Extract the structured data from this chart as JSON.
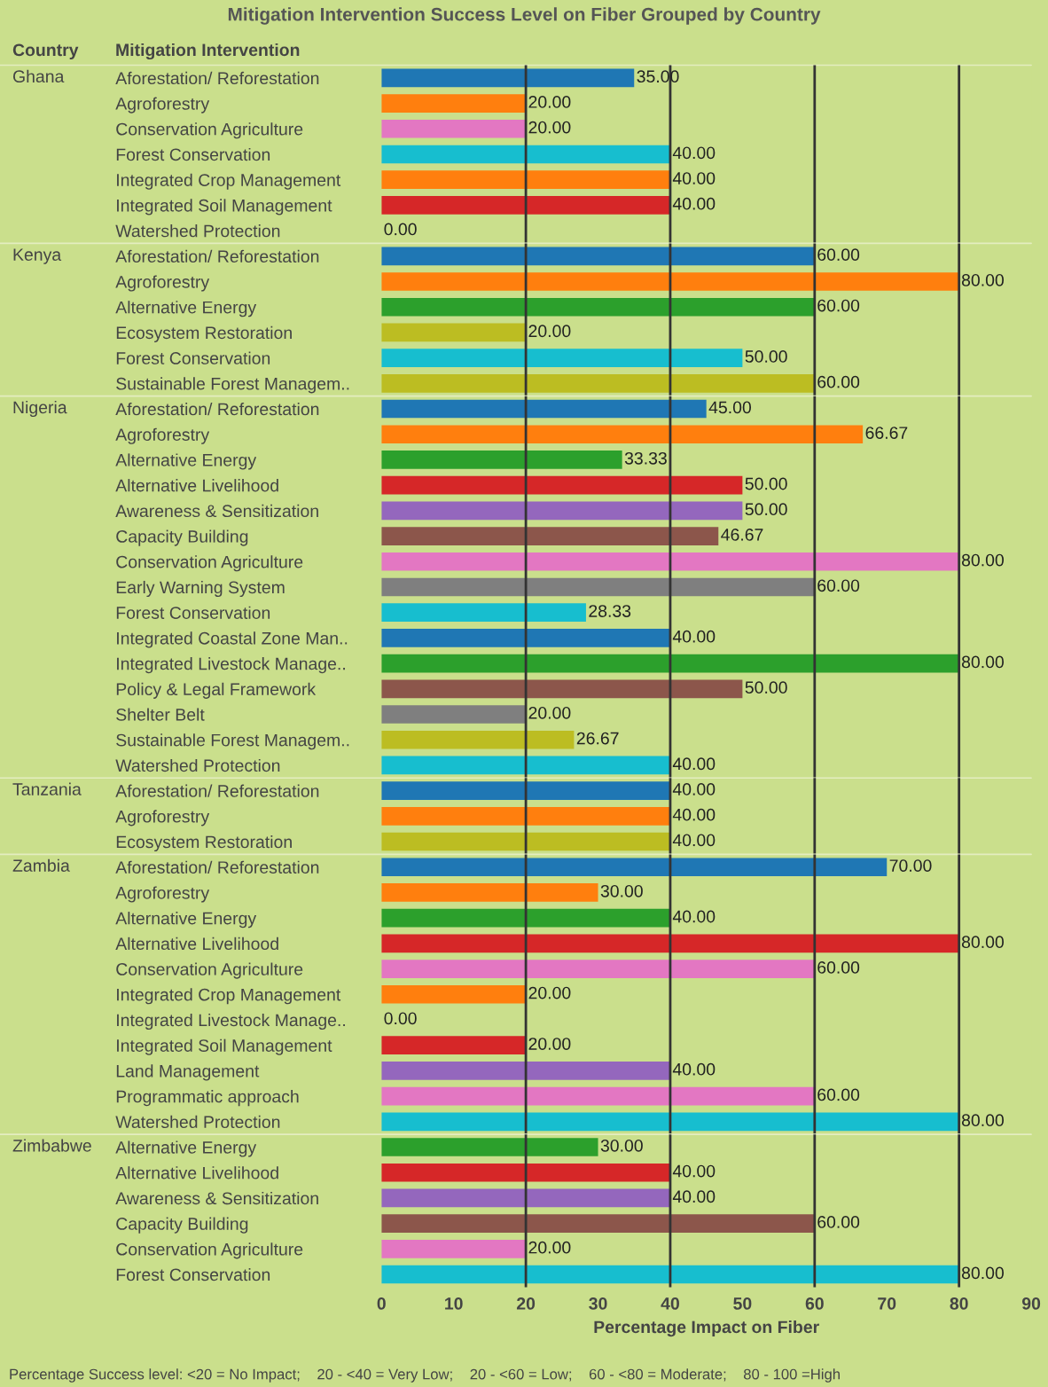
{
  "chart_data": [
    {
      "type": "bar",
      "orientation": "horizontal",
      "title": "Mitigation Intervention Success Level on Fiber Grouped by Country",
      "subtitle": "Ghana",
      "ylabel": "Mitigation Intervention",
      "annotations": [
        "Country"
      ],
      "categories": [
        "Aforestation/ Reforestation",
        "Agroforestry",
        "Conservation Agriculture",
        "Forest Conservation",
        "Integrated Crop Management",
        "Integrated Soil Management",
        "Watershed Protection"
      ],
      "values": [
        35,
        20,
        20,
        40,
        40,
        40,
        0
      ],
      "value_labels": [
        "35.00",
        "20.00",
        "20.00",
        "40.00",
        "40.00",
        "40.00",
        "0.00"
      ],
      "colors": [
        "#1f77b4",
        "#ff7f0e",
        "#e377c2",
        "#17becf",
        "#ff7f0e",
        "#d62728",
        "#17becf"
      ],
      "xlim": [
        0,
        90
      ],
      "tick_labels": "y",
      "ref_lines": [
        {
          "axis": "x",
          "value": 20,
          "color": "#333333"
        },
        {
          "axis": "x",
          "value": 40,
          "color": "#333333"
        },
        {
          "axis": "x",
          "value": 60,
          "color": "#333333"
        },
        {
          "axis": "x",
          "value": 80,
          "color": "#333333"
        }
      ]
    },
    {
      "type": "bar",
      "orientation": "horizontal",
      "subtitle": "Kenya",
      "categories": [
        "Aforestation/ Reforestation",
        "Agroforestry",
        "Alternative Energy",
        "Ecosystem Restoration",
        "Forest Conservation",
        "Sustainable Forest Managem.."
      ],
      "values": [
        60,
        80,
        60,
        20,
        50,
        60
      ],
      "value_labels": [
        "60.00",
        "80.00",
        "60.00",
        "20.00",
        "50.00",
        "60.00"
      ],
      "colors": [
        "#1f77b4",
        "#ff7f0e",
        "#2ca02c",
        "#bcbd22",
        "#17becf",
        "#bcbd22"
      ],
      "xlim": [
        0,
        90
      ],
      "tick_labels": "y",
      "ref_lines": [
        {
          "axis": "x",
          "value": 20,
          "color": "#333333"
        },
        {
          "axis": "x",
          "value": 40,
          "color": "#333333"
        },
        {
          "axis": "x",
          "value": 60,
          "color": "#333333"
        },
        {
          "axis": "x",
          "value": 80,
          "color": "#333333"
        }
      ]
    },
    {
      "type": "bar",
      "orientation": "horizontal",
      "subtitle": "Nigeria",
      "categories": [
        "Aforestation/ Reforestation",
        "Agroforestry",
        "Alternative Energy",
        "Alternative Livelihood",
        "Awareness & Sensitization",
        "Capacity Building",
        "Conservation Agriculture",
        "Early Warning System",
        "Forest Conservation",
        "Integrated Coastal Zone Man..",
        "Integrated Livestock Manage..",
        "Policy & Legal Framework",
        "Shelter Belt",
        "Sustainable Forest Managem..",
        "Watershed Protection"
      ],
      "values": [
        45,
        66.67,
        33.33,
        50,
        50,
        46.67,
        80,
        60,
        28.33,
        40,
        80,
        50,
        20,
        26.67,
        40
      ],
      "value_labels": [
        "45.00",
        "66.67",
        "33.33",
        "50.00",
        "50.00",
        "46.67",
        "80.00",
        "60.00",
        "28.33",
        "40.00",
        "80.00",
        "50.00",
        "20.00",
        "26.67",
        "40.00"
      ],
      "colors": [
        "#1f77b4",
        "#ff7f0e",
        "#2ca02c",
        "#d62728",
        "#9467bd",
        "#8c564b",
        "#e377c2",
        "#7f7f7f",
        "#17becf",
        "#1f77b4",
        "#2ca02c",
        "#8c564b",
        "#7f7f7f",
        "#bcbd22",
        "#17becf"
      ],
      "xlim": [
        0,
        90
      ],
      "tick_labels": "y",
      "ref_lines": [
        {
          "axis": "x",
          "value": 20,
          "color": "#333333"
        },
        {
          "axis": "x",
          "value": 40,
          "color": "#333333"
        },
        {
          "axis": "x",
          "value": 60,
          "color": "#333333"
        },
        {
          "axis": "x",
          "value": 80,
          "color": "#333333"
        }
      ]
    },
    {
      "type": "bar",
      "orientation": "horizontal",
      "subtitle": "Tanzania",
      "categories": [
        "Aforestation/ Reforestation",
        "Agroforestry",
        "Ecosystem Restoration"
      ],
      "values": [
        40,
        40,
        40
      ],
      "value_labels": [
        "40.00",
        "40.00",
        "40.00"
      ],
      "colors": [
        "#1f77b4",
        "#ff7f0e",
        "#bcbd22"
      ],
      "xlim": [
        0,
        90
      ],
      "tick_labels": "y",
      "ref_lines": [
        {
          "axis": "x",
          "value": 20,
          "color": "#333333"
        },
        {
          "axis": "x",
          "value": 40,
          "color": "#333333"
        },
        {
          "axis": "x",
          "value": 60,
          "color": "#333333"
        },
        {
          "axis": "x",
          "value": 80,
          "color": "#333333"
        }
      ]
    },
    {
      "type": "bar",
      "orientation": "horizontal",
      "subtitle": "Zambia",
      "categories": [
        "Aforestation/ Reforestation",
        "Agroforestry",
        "Alternative Energy",
        "Alternative Livelihood",
        "Conservation Agriculture",
        "Integrated Crop Management",
        "Integrated Livestock Manage..",
        "Integrated Soil Management",
        "Land Management",
        "Programmatic approach",
        "Watershed Protection"
      ],
      "values": [
        70,
        30,
        40,
        80,
        60,
        20,
        0,
        20,
        40,
        60,
        80
      ],
      "value_labels": [
        "70.00",
        "30.00",
        "40.00",
        "80.00",
        "60.00",
        "20.00",
        "0.00",
        "20.00",
        "40.00",
        "60.00",
        "80.00"
      ],
      "colors": [
        "#1f77b4",
        "#ff7f0e",
        "#2ca02c",
        "#d62728",
        "#e377c2",
        "#ff7f0e",
        "#2ca02c",
        "#d62728",
        "#9467bd",
        "#e377c2",
        "#17becf"
      ],
      "xlim": [
        0,
        90
      ],
      "tick_labels": "y",
      "ref_lines": [
        {
          "axis": "x",
          "value": 20,
          "color": "#333333"
        },
        {
          "axis": "x",
          "value": 40,
          "color": "#333333"
        },
        {
          "axis": "x",
          "value": 60,
          "color": "#333333"
        },
        {
          "axis": "x",
          "value": 80,
          "color": "#333333"
        }
      ]
    },
    {
      "type": "bar",
      "orientation": "horizontal",
      "subtitle": "Zimbabwe",
      "xlabel": "Percentage Impact on Fiber",
      "annotations": [
        "Percentage Success level: <20 = No Impact;    20 - <40 = Very Low;    20 - <60 = Low;    60 - <80 = Moderate;    80 - 100 =High"
      ],
      "categories": [
        "Alternative Energy",
        "Alternative Livelihood",
        "Awareness & Sensitization",
        "Capacity Building",
        "Conservation Agriculture",
        "Forest Conservation"
      ],
      "values": [
        30,
        40,
        40,
        60,
        20,
        80
      ],
      "value_labels": [
        "30.00",
        "40.00",
        "40.00",
        "60.00",
        "20.00",
        "80.00"
      ],
      "colors": [
        "#2ca02c",
        "#d62728",
        "#9467bd",
        "#8c564b",
        "#e377c2",
        "#17becf"
      ],
      "xlim": [
        0,
        90
      ],
      "xticks": [
        0,
        10,
        20,
        30,
        40,
        50,
        60,
        70,
        80,
        90
      ],
      "ref_lines": [
        {
          "axis": "x",
          "value": 20,
          "color": "#333333"
        },
        {
          "axis": "x",
          "value": 40,
          "color": "#333333"
        },
        {
          "axis": "x",
          "value": 60,
          "color": "#333333"
        },
        {
          "axis": "x",
          "value": 80,
          "color": "#333333"
        }
      ]
    }
  ]
}
